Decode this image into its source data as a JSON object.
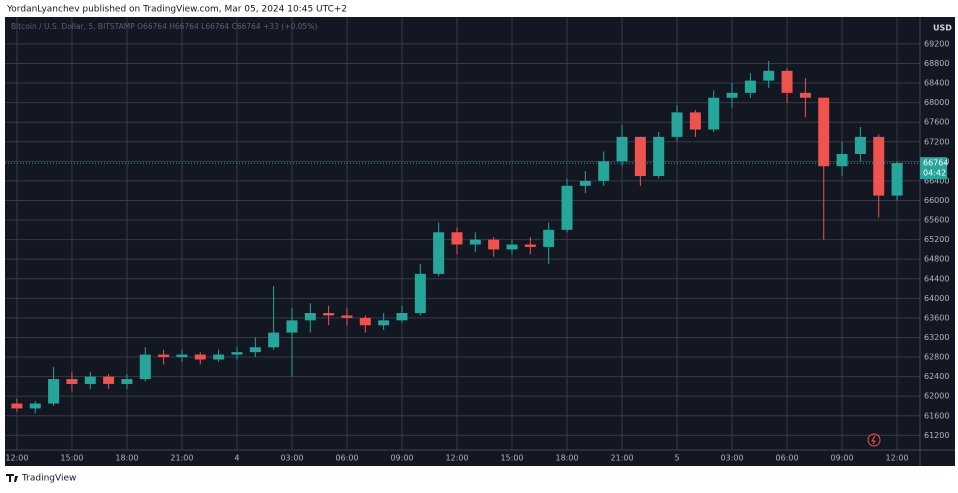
{
  "header": "YordanLyanchev published on TradingView.com, Mar 05, 2024 10:45 UTC+2",
  "footer": "TradingView",
  "chart_data": {
    "type": "candlestick",
    "legend_text": "Bitcoin / U.S. Dollar, 5, BITSTAMP  O66764  H66764  L66764  C66764  +33 (+0.05%)",
    "currency": "USD",
    "last_price": 66764,
    "countdown": "04:42",
    "up_color": "#26a69a",
    "down_color": "#ef5350",
    "grid": true,
    "x": [
      0,
      1,
      2,
      3,
      4,
      5,
      6,
      7,
      8,
      9,
      10,
      11,
      12,
      13,
      14,
      15,
      16,
      17,
      18,
      19,
      20,
      21,
      22,
      23,
      24,
      25,
      26,
      27,
      28,
      29,
      30,
      31,
      32,
      33,
      34,
      35,
      36,
      37,
      38,
      39,
      40,
      41,
      42,
      43,
      44,
      45,
      46,
      47,
      48
    ],
    "open": [
      61850,
      61750,
      61850,
      62350,
      62250,
      62400,
      62250,
      62350,
      62850,
      62800,
      62850,
      62750,
      62850,
      62900,
      63000,
      63300,
      63550,
      63700,
      63650,
      63600,
      63450,
      63550,
      63700,
      64500,
      65350,
      65100,
      65200,
      65000,
      65100,
      65050,
      65400,
      66300,
      66400,
      66800,
      67300,
      66500,
      67300,
      67800,
      67450,
      68100,
      68200,
      68450,
      68650,
      68200,
      68100,
      66700,
      66950,
      67300,
      66100
    ],
    "high": [
      61950,
      61900,
      62600,
      62500,
      62500,
      62450,
      62450,
      63000,
      62950,
      62950,
      62900,
      62950,
      63000,
      63200,
      64250,
      63800,
      63900,
      63850,
      63800,
      63650,
      63700,
      63850,
      64700,
      65550,
      65450,
      65350,
      65250,
      65200,
      65250,
      65550,
      66450,
      66600,
      67000,
      67550,
      67300,
      67400,
      67950,
      67850,
      68250,
      68400,
      68600,
      68850,
      68700,
      68500,
      68100,
      67200,
      67500,
      67350,
      66800
    ],
    "low": [
      61680,
      61650,
      61800,
      62100,
      62150,
      62150,
      62150,
      62300,
      62650,
      62700,
      62650,
      62700,
      62750,
      62800,
      62950,
      62400,
      63300,
      63450,
      63450,
      63300,
      63350,
      63500,
      63650,
      64450,
      64900,
      64950,
      64850,
      64900,
      64900,
      64700,
      65350,
      66150,
      66300,
      66700,
      66300,
      66450,
      67200,
      67300,
      67400,
      67900,
      68100,
      68300,
      68000,
      67700,
      65200,
      66500,
      66800,
      65650,
      66000
    ],
    "close": [
      61750,
      61850,
      62350,
      62250,
      62400,
      62250,
      62350,
      62850,
      62800,
      62850,
      62750,
      62850,
      62900,
      63000,
      63300,
      63550,
      63700,
      63650,
      63600,
      63450,
      63550,
      63700,
      64500,
      65350,
      65100,
      65200,
      65000,
      65100,
      65050,
      65400,
      66300,
      66400,
      66800,
      67300,
      66500,
      67300,
      67800,
      67450,
      68100,
      68200,
      68450,
      68650,
      68200,
      68100,
      66700,
      66950,
      67300,
      66100,
      66764
    ],
    "xlim": [
      -0.65,
      49.25
    ],
    "xticks": [
      {
        "value": 0,
        "label": "12:00"
      },
      {
        "value": 3,
        "label": "15:00"
      },
      {
        "value": 6,
        "label": "18:00"
      },
      {
        "value": 9,
        "label": "21:00"
      },
      {
        "value": 12,
        "label": "4"
      },
      {
        "value": 15,
        "label": "03:00"
      },
      {
        "value": 18,
        "label": "06:00"
      },
      {
        "value": 21,
        "label": "09:00"
      },
      {
        "value": 24,
        "label": "12:00"
      },
      {
        "value": 27,
        "label": "15:00"
      },
      {
        "value": 30,
        "label": "18:00"
      },
      {
        "value": 33,
        "label": "21:00"
      },
      {
        "value": 36,
        "label": "5"
      },
      {
        "value": 39,
        "label": "03:00"
      },
      {
        "value": 42,
        "label": "06:00"
      },
      {
        "value": 45,
        "label": "09:00"
      },
      {
        "value": 48,
        "label": "12:00"
      }
    ],
    "ylim": [
      60900,
      69750
    ],
    "yticks": [
      61200,
      61600,
      62000,
      62400,
      62800,
      63200,
      63600,
      64000,
      64400,
      64800,
      65200,
      65600,
      66000,
      66400,
      66800,
      67200,
      67600,
      68000,
      68400,
      68800,
      69200
    ]
  }
}
